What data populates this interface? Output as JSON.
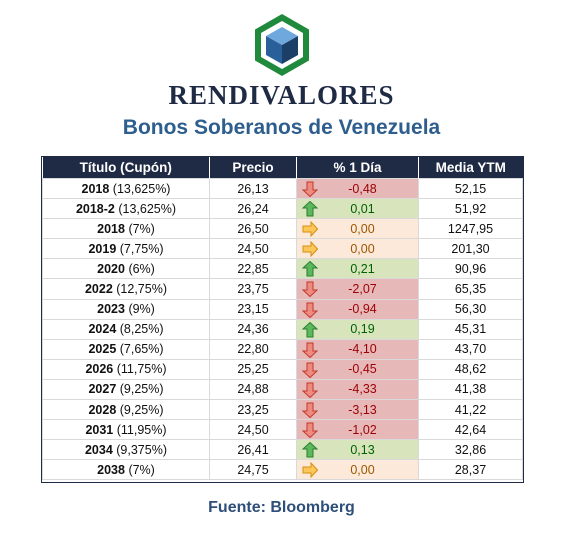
{
  "header": {
    "brand": "RENDIVALORES",
    "subtitle": "Bonos Soberanos de Venezuela"
  },
  "table": {
    "columns": [
      "Título (Cupón)",
      "Precio",
      "% 1 Día",
      "Media YTM"
    ],
    "rows": [
      {
        "year": "2018",
        "coupon": " (13,625%)",
        "price": "26,13",
        "change": "-0,48",
        "trend": "down",
        "ytm": "52,15"
      },
      {
        "year": "2018-2",
        "coupon": " (13,625%)",
        "price": "26,24",
        "change": "0,01",
        "trend": "up",
        "ytm": "51,92"
      },
      {
        "year": "2018",
        "coupon": " (7%)",
        "price": "26,50",
        "change": "0,00",
        "trend": "flat",
        "ytm": "1247,95"
      },
      {
        "year": "2019",
        "coupon": " (7,75%)",
        "price": "24,50",
        "change": "0,00",
        "trend": "flat",
        "ytm": "201,30"
      },
      {
        "year": "2020",
        "coupon": " (6%)",
        "price": "22,85",
        "change": "0,21",
        "trend": "up",
        "ytm": "90,96"
      },
      {
        "year": "2022",
        "coupon": " (12,75%)",
        "price": "23,75",
        "change": "-2,07",
        "trend": "down",
        "ytm": "65,35"
      },
      {
        "year": "2023",
        "coupon": " (9%)",
        "price": "23,15",
        "change": "-0,94",
        "trend": "down",
        "ytm": "56,30"
      },
      {
        "year": "2024",
        "coupon": " (8,25%)",
        "price": "24,36",
        "change": "0,19",
        "trend": "up",
        "ytm": "45,31"
      },
      {
        "year": "2025",
        "coupon": " (7,65%)",
        "price": "22,80",
        "change": "-4,10",
        "trend": "down",
        "ytm": "43,70"
      },
      {
        "year": "2026",
        "coupon": " (11,75%)",
        "price": "25,25",
        "change": "-0,45",
        "trend": "down",
        "ytm": "48,62"
      },
      {
        "year": "2027",
        "coupon": " (9,25%)",
        "price": "24,88",
        "change": "-4,33",
        "trend": "down",
        "ytm": "41,38"
      },
      {
        "year": "2028",
        "coupon": " (9,25%)",
        "price": "23,25",
        "change": "-3,13",
        "trend": "down",
        "ytm": "41,22"
      },
      {
        "year": "2031",
        "coupon": " (11,95%)",
        "price": "24,50",
        "change": "-1,02",
        "trend": "down",
        "ytm": "42,64"
      },
      {
        "year": "2034",
        "coupon": " (9,375%)",
        "price": "26,41",
        "change": "0,13",
        "trend": "up",
        "ytm": "32,86"
      },
      {
        "year": "2038",
        "coupon": " (7%)",
        "price": "24,75",
        "change": "0,00",
        "trend": "flat",
        "ytm": "28,37"
      }
    ]
  },
  "footer": {
    "source": "Fuente: Bloomberg"
  },
  "icons": {
    "down": "arrow-down-icon",
    "up": "arrow-up-icon",
    "flat": "arrow-right-icon"
  },
  "colors": {
    "header_bg": "#1f2a44",
    "subtitle": "#2e5e8e",
    "down_fill": "#e6b8b7",
    "down_text": "#9c0006",
    "up_fill": "#d8e4bc",
    "up_text": "#006100",
    "flat_fill": "#fde9d9",
    "flat_text": "#9c5700",
    "logo_green": "#1f8a3b",
    "logo_blue": "#1f4e79"
  }
}
